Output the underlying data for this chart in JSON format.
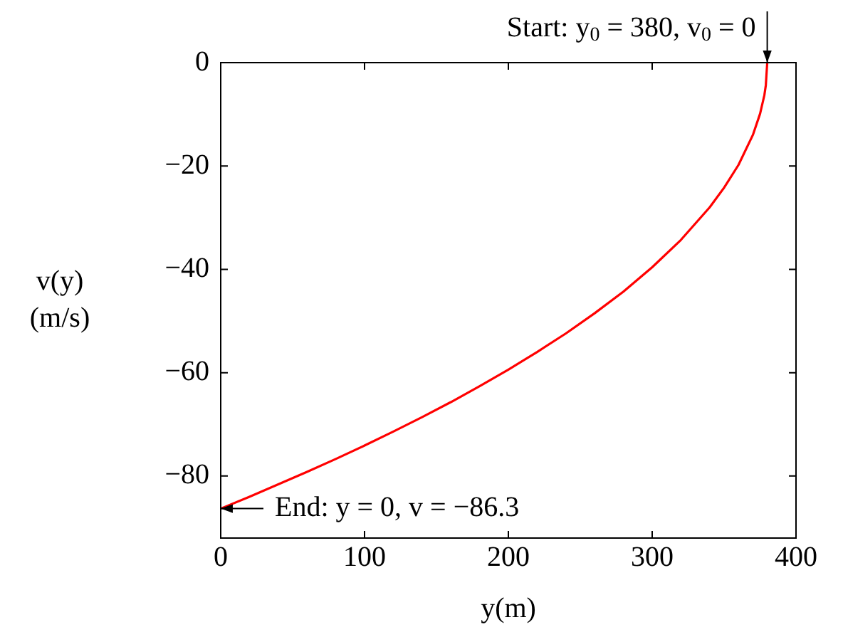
{
  "chart_data": {
    "type": "line",
    "xlabel": "y(m)",
    "ylabel": "v(y) (m/s)",
    "x": [
      0,
      20,
      40,
      60,
      80,
      100,
      120,
      140,
      160,
      180,
      200,
      220,
      240,
      260,
      280,
      300,
      320,
      340,
      350,
      360,
      370,
      375,
      378,
      379,
      380
    ],
    "series": [
      {
        "color": "#ff0000",
        "values": [
          -86.3,
          -84.0,
          -81.6,
          -79.2,
          -76.7,
          -74.1,
          -71.4,
          -68.6,
          -65.7,
          -62.6,
          -59.4,
          -56.0,
          -52.4,
          -48.5,
          -44.3,
          -39.6,
          -34.3,
          -28.0,
          -24.2,
          -19.8,
          -14.0,
          -9.9,
          -6.3,
          -4.4,
          0
        ]
      }
    ],
    "xlim": [
      0,
      400
    ],
    "xticks": [
      0,
      100,
      200,
      300,
      400
    ],
    "ylim": [
      -92,
      0
    ],
    "yticks": [
      -80,
      -60,
      -40,
      -20,
      0
    ],
    "legend": false,
    "marker": "none",
    "line_style": "solid",
    "annotations": [
      {
        "text": "Start: y$_{0}$ = 380, v$_{0}$ = 0",
        "x": 380,
        "y": 0
      },
      {
        "text": "End: y = 0, v = −86.3",
        "x": 0,
        "y": -86.3
      }
    ]
  }
}
